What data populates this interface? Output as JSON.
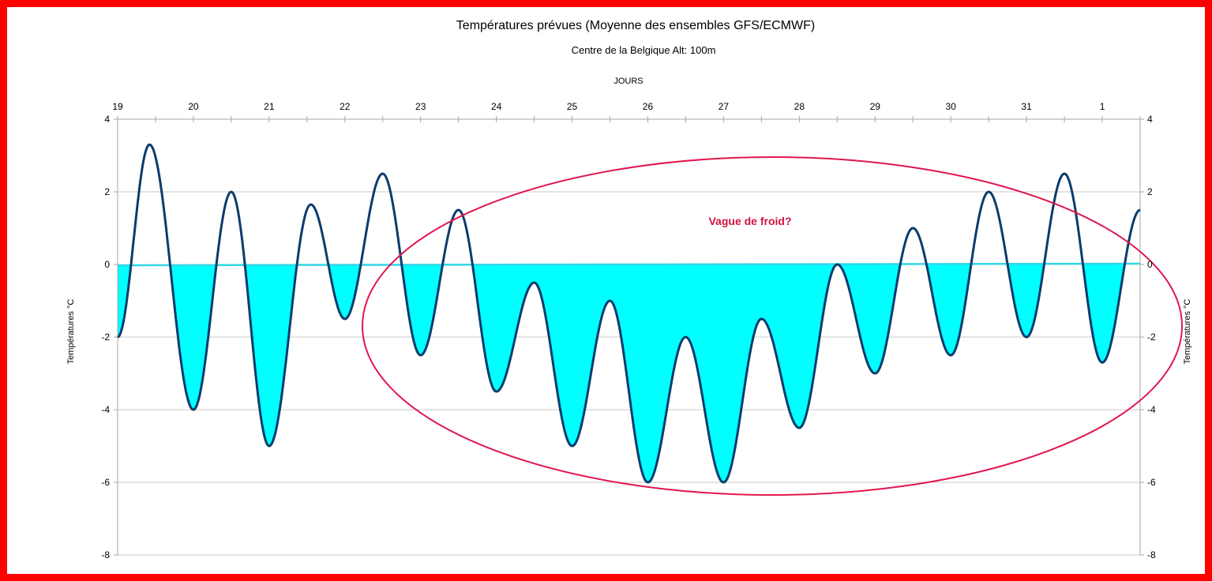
{
  "colors": {
    "frame": "#ff0000",
    "line": "#0b3c6b",
    "fill": "#00ffff",
    "zero_line": "#33d6e6",
    "ellipse": "#e0174f",
    "annotation": "#d01440",
    "grid": "#c8c8c8",
    "axis": "#a6a6a6"
  },
  "chart_data": {
    "type": "area",
    "title": "Températures prévues (Moyenne des ensembles GFS/ECMWF)",
    "subtitle": "Centre de la Belgique Alt: 100m",
    "xlabel": "JOURS",
    "ylabel_left": "Températures °C",
    "ylabel_right": "Températures °C",
    "ylim": [
      -8,
      4
    ],
    "ytick_step": 2,
    "ytick_labels": [
      "4",
      "2",
      "0",
      "-2",
      "-4",
      "-6",
      "-8"
    ],
    "xlim": [
      0,
      13.5
    ],
    "x_tick_labels": [
      "19",
      "20",
      "21",
      "22",
      "23",
      "24",
      "25",
      "26",
      "27",
      "28",
      "29",
      "30",
      "31",
      "1"
    ],
    "grid": true,
    "fill_below_zero": true,
    "annotation": "Vague de froid?",
    "series": [
      {
        "values_note_x_is_day_index_from_19": true,
        "x": [
          0,
          0.42,
          1,
          1.5,
          2,
          2.55,
          3,
          3.5,
          4,
          4.5,
          5,
          5.5,
          6,
          6.5,
          7,
          7.5,
          8,
          8.5,
          9,
          9.5,
          10,
          10.5,
          11,
          11.5,
          12,
          12.5,
          13,
          13.5
        ],
        "values": [
          -2,
          3.3,
          -4,
          2,
          -5,
          1.65,
          -1.5,
          2.5,
          -2.5,
          1.5,
          -3.5,
          -0.5,
          -5,
          -1,
          -6,
          -2,
          -6,
          -1.5,
          -4.5,
          0,
          -3,
          1,
          -2.5,
          2,
          -2,
          2.5,
          -2.7,
          1.5
        ]
      }
    ]
  }
}
